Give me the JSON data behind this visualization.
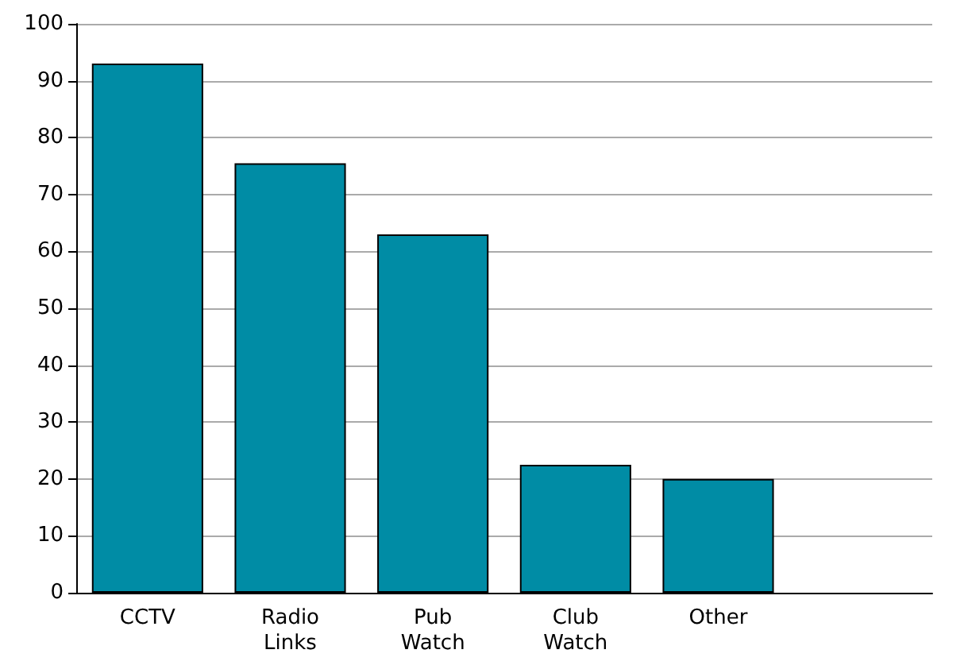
{
  "chart_data": {
    "type": "bar",
    "categories": [
      "CCTV",
      "Radio\nLinks",
      "Pub\nWatch",
      "Club\nWatch",
      "Other",
      null
    ],
    "series": [
      {
        "color": "#008ca5",
        "values": [
          93,
          75.5,
          63,
          22.5,
          20,
          null
        ]
      }
    ],
    "ylim": [
      0,
      100
    ],
    "yticks": [
      0,
      10,
      20,
      30,
      40,
      50,
      60,
      70,
      80,
      90,
      100
    ],
    "grid": "y"
  }
}
